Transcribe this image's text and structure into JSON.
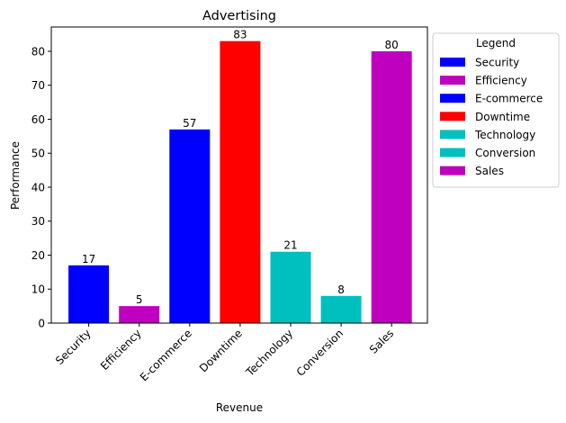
{
  "chart_data": {
    "type": "bar",
    "title": "Advertising",
    "xlabel": "Revenue",
    "ylabel": "Performance",
    "categories": [
      "Security",
      "Efficiency",
      "E-commerce",
      "Downtime",
      "Technology",
      "Conversion",
      "Sales"
    ],
    "values": [
      17,
      5,
      57,
      83,
      21,
      8,
      80
    ],
    "colors": [
      "#0000ff",
      "#bf00bf",
      "#0000ff",
      "#ff0000",
      "#00bfbf",
      "#00bfbf",
      "#bf00bf"
    ],
    "ylim": [
      0,
      87.15
    ],
    "yticks": [
      0,
      10,
      20,
      30,
      40,
      50,
      60,
      70,
      80
    ],
    "grid": false,
    "legend": {
      "title": "Legend",
      "placement": "outside-upper-right",
      "entries": [
        "Security",
        "Efficiency",
        "E-commerce",
        "Downtime",
        "Technology",
        "Conversion",
        "Sales"
      ]
    },
    "bar_labels": true
  }
}
